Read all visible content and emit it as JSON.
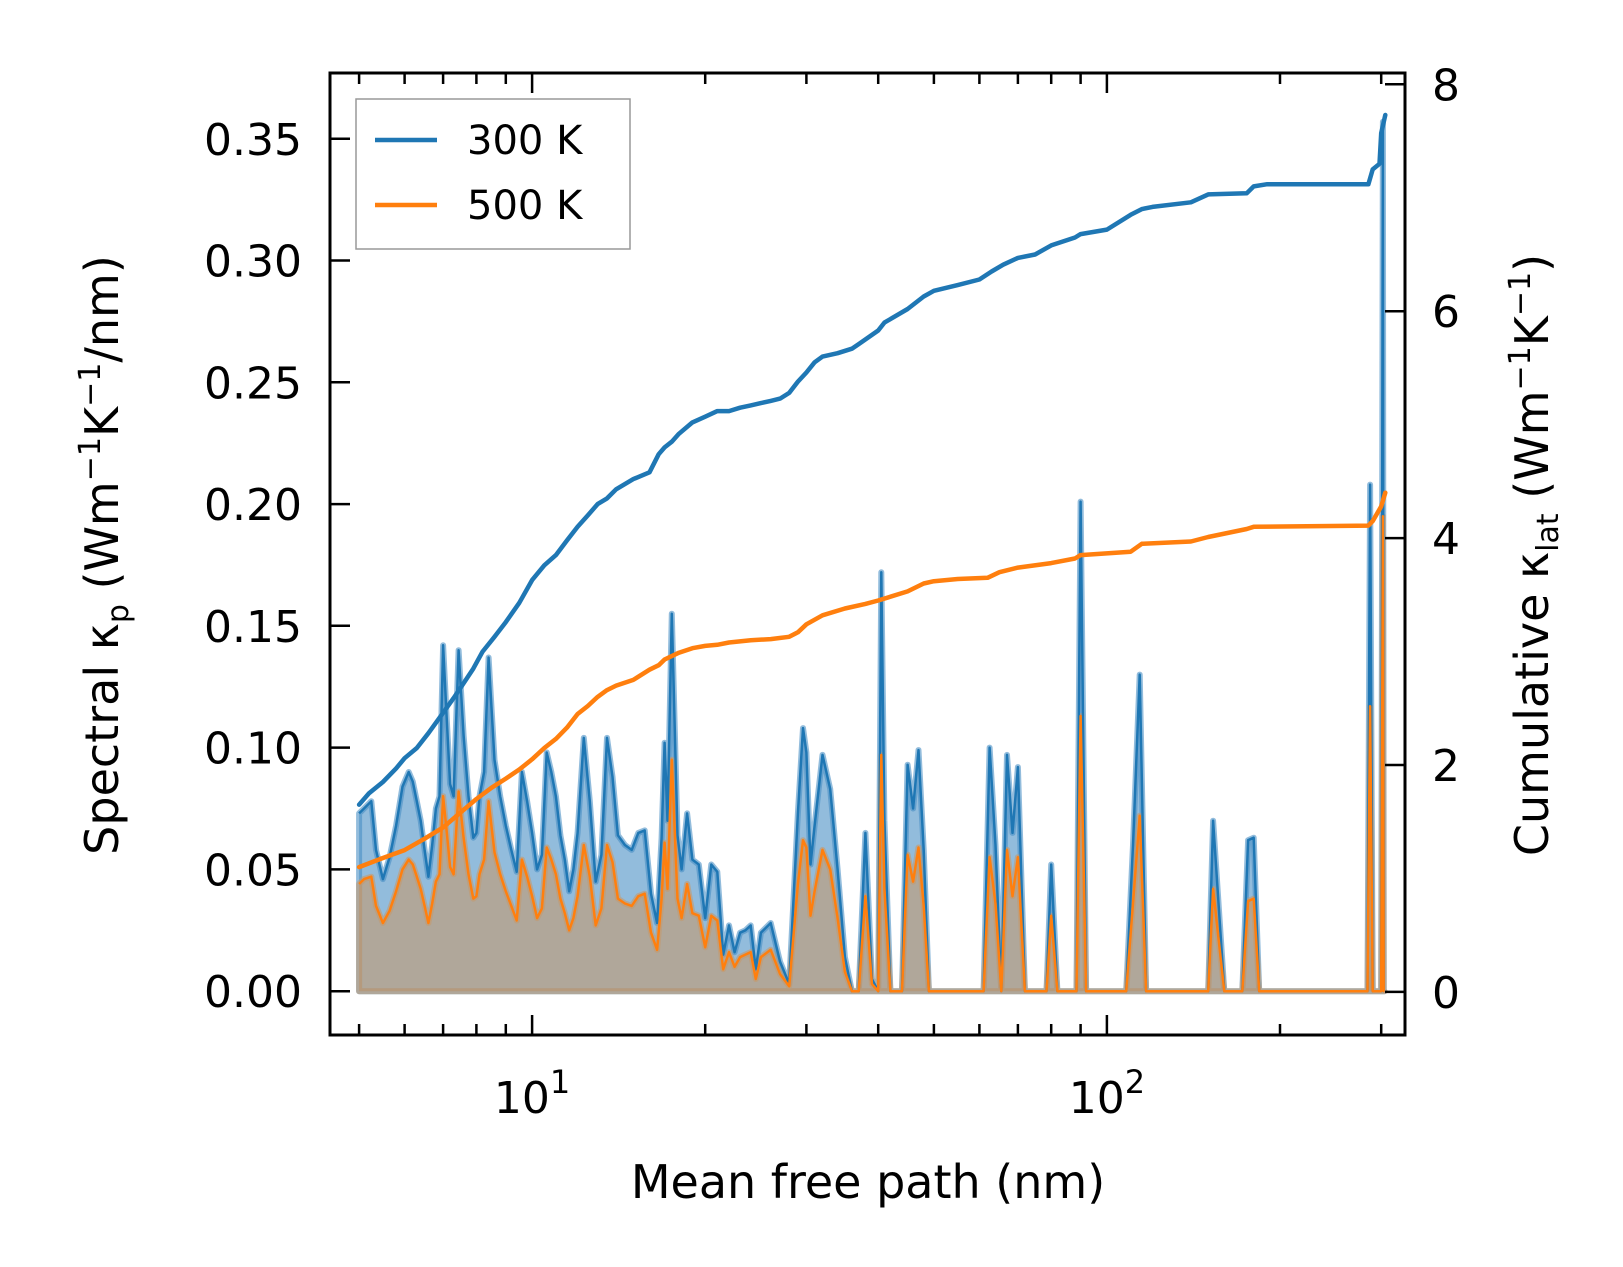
{
  "chart_data": {
    "type": "line",
    "x_scale": "log",
    "xlim": [
      4.45,
      330
    ],
    "xlabel": "Mean free path (nm)",
    "x_major_ticks": [
      {
        "value": 10,
        "base": "10",
        "exp": "1"
      },
      {
        "value": 100,
        "base": "10",
        "exp": "2"
      }
    ],
    "y_left": {
      "label": "Spectral κp (Wm−1K−1/nm)",
      "label_parts": {
        "pre": "Spectral κ",
        "sub": "p",
        "unit_open": " (Wm",
        "sup1": "−1",
        "mid": "K",
        "sup2": "−1",
        "unit_close": "/nm)"
      },
      "lim": [
        -0.018,
        0.377
      ],
      "ticks": [
        0.0,
        0.05,
        0.1,
        0.15,
        0.2,
        0.25,
        0.3,
        0.35
      ],
      "tick_labels": [
        "0.00",
        "0.05",
        "0.10",
        "0.15",
        "0.20",
        "0.25",
        "0.30",
        "0.35"
      ]
    },
    "y_right": {
      "label": "Cumulative κlat (Wm−1K−1)",
      "label_parts": {
        "pre": "Cumulative κ",
        "sub": "lat",
        "unit_open": " (Wm",
        "sup1": "−1",
        "mid": "K",
        "sup2": "−1",
        "unit_close": ")"
      },
      "lim": [
        -0.38,
        8.1
      ],
      "ticks": [
        0,
        2,
        4,
        6,
        8
      ],
      "tick_labels": [
        "0",
        "2",
        "4",
        "6",
        "8"
      ]
    },
    "legend": {
      "position": "top-left",
      "entries": [
        "300 K",
        "500 K"
      ]
    },
    "series": [
      {
        "name": "300 K",
        "color": "#1f77b4",
        "fill_color": "#1f77b4",
        "axis": "right",
        "kind": "cumulative",
        "x": [
          5.0,
          5.2,
          5.5,
          5.8,
          6.0,
          6.3,
          6.6,
          7.0,
          7.3,
          7.6,
          7.9,
          8.2,
          8.6,
          9.0,
          9.5,
          10.0,
          10.5,
          11.0,
          11.5,
          12.0,
          12.5,
          13.0,
          13.5,
          14.0,
          15.0,
          16.0,
          16.6,
          17.0,
          17.5,
          18.0,
          19.0,
          20.0,
          21.0,
          22.0,
          23.0,
          24.0,
          25.0,
          26.0,
          27.0,
          28.0,
          29.0,
          30.0,
          31.0,
          32.0,
          34.0,
          36.0,
          37.0,
          40.0,
          41.0,
          45.0,
          48.0,
          50.0,
          55.0,
          60.0,
          63.0,
          66.0,
          70.0,
          75.0,
          80.0,
          88.0,
          90.0,
          100.0,
          110.0,
          115.0,
          120.0,
          140.0,
          150.0,
          175.0,
          180.0,
          190.0,
          200.0,
          250.0,
          285.0,
          290.0,
          298.0,
          300.0,
          305.0
        ],
        "y": [
          1.65,
          1.75,
          1.85,
          1.97,
          2.06,
          2.15,
          2.28,
          2.46,
          2.59,
          2.72,
          2.85,
          3.0,
          3.13,
          3.26,
          3.43,
          3.63,
          3.76,
          3.85,
          3.98,
          4.1,
          4.2,
          4.3,
          4.35,
          4.43,
          4.52,
          4.58,
          4.74,
          4.8,
          4.85,
          4.92,
          5.02,
          5.07,
          5.12,
          5.12,
          5.15,
          5.17,
          5.19,
          5.21,
          5.23,
          5.28,
          5.38,
          5.46,
          5.55,
          5.6,
          5.63,
          5.67,
          5.71,
          5.83,
          5.9,
          6.02,
          6.13,
          6.18,
          6.23,
          6.28,
          6.35,
          6.41,
          6.47,
          6.5,
          6.58,
          6.65,
          6.68,
          6.72,
          6.85,
          6.9,
          6.92,
          6.96,
          7.03,
          7.04,
          7.1,
          7.12,
          7.12,
          7.12,
          7.12,
          7.25,
          7.3,
          7.57,
          7.73
        ]
      },
      {
        "name": "500 K",
        "color": "#ff7f0e",
        "fill_color": "#ff7f0e",
        "axis": "right",
        "kind": "cumulative",
        "x": [
          5.0,
          5.5,
          6.0,
          6.5,
          7.0,
          7.5,
          8.0,
          8.5,
          9.0,
          9.5,
          10.0,
          10.5,
          11.0,
          11.5,
          12.0,
          12.5,
          13.0,
          13.5,
          14.0,
          15.0,
          16.0,
          16.6,
          17.0,
          18.0,
          19.0,
          20.0,
          21.0,
          22.0,
          24.0,
          26.0,
          28.0,
          29.0,
          30.0,
          32.0,
          35.0,
          38.0,
          40.0,
          45.0,
          48.0,
          50.0,
          55.0,
          62.0,
          65.0,
          70.0,
          80.0,
          88.0,
          90.0,
          110.0,
          115.0,
          140.0,
          150.0,
          175.0,
          180.0,
          285.0,
          290.0,
          300.0,
          305.0
        ],
        "y": [
          1.1,
          1.18,
          1.25,
          1.35,
          1.45,
          1.58,
          1.7,
          1.8,
          1.88,
          1.96,
          2.05,
          2.15,
          2.23,
          2.33,
          2.45,
          2.52,
          2.6,
          2.66,
          2.7,
          2.75,
          2.84,
          2.88,
          2.93,
          2.99,
          3.03,
          3.05,
          3.06,
          3.08,
          3.1,
          3.11,
          3.13,
          3.17,
          3.24,
          3.32,
          3.38,
          3.42,
          3.45,
          3.53,
          3.6,
          3.62,
          3.64,
          3.65,
          3.7,
          3.74,
          3.78,
          3.82,
          3.85,
          3.88,
          3.95,
          3.97,
          4.01,
          4.08,
          4.1,
          4.11,
          4.15,
          4.28,
          4.4
        ]
      },
      {
        "name": "300 K spectral",
        "color": "#1f77b4",
        "fill_color": "#4a8fc4",
        "axis": "left",
        "kind": "spectral",
        "x": [
          5.0,
          5.1,
          5.25,
          5.35,
          5.5,
          5.65,
          5.8,
          5.95,
          6.1,
          6.2,
          6.3,
          6.4,
          6.5,
          6.6,
          6.7,
          6.8,
          6.9,
          7.0,
          7.1,
          7.2,
          7.3,
          7.45,
          7.6,
          7.75,
          7.9,
          8.0,
          8.1,
          8.25,
          8.4,
          8.6,
          8.8,
          9.0,
          9.2,
          9.4,
          9.6,
          9.8,
          10.0,
          10.2,
          10.4,
          10.6,
          10.8,
          11.0,
          11.2,
          11.4,
          11.6,
          11.8,
          12.0,
          12.3,
          12.6,
          12.9,
          13.2,
          13.5,
          13.8,
          14.1,
          14.5,
          14.9,
          15.3,
          15.7,
          16.1,
          16.5,
          16.8,
          17.0,
          17.2,
          17.5,
          17.9,
          18.2,
          18.6,
          19.0,
          19.5,
          20.0,
          20.5,
          21.0,
          21.5,
          22.0,
          22.5,
          23.0,
          23.5,
          24.0,
          24.5,
          25.0,
          26.0,
          27.0,
          28.0,
          29.0,
          29.6,
          30.0,
          30.5,
          31.0,
          32.0,
          33.0,
          34.0,
          35.0,
          36.0,
          37.0,
          38.0,
          39.0,
          40.0,
          40.5,
          41.0,
          42.0,
          43.0,
          44.0,
          45.0,
          46.0,
          47.0,
          48.0,
          49.0,
          50.0,
          52.0,
          55.0,
          58.0,
          60.0,
          61.0,
          62.5,
          64.0,
          65.5,
          67.0,
          68.5,
          70.0,
          72.0,
          75.0,
          77.0,
          78.5,
          80.0,
          82.0,
          85.0,
          87.0,
          88.5,
          90.0,
          92.0,
          95.0,
          100.0,
          105.0,
          108.0,
          111.0,
          114.0,
          117.0,
          120.0,
          130.0,
          140.0,
          147.0,
          150.0,
          153.0,
          160.0,
          168.0,
          172.0,
          176.0,
          180.0,
          184.0,
          190.0,
          200.0,
          250.0,
          280.0,
          284.0,
          287.0,
          290.0,
          294.0,
          297.0,
          300.0,
          302.0,
          303.0,
          304.0
        ],
        "y": [
          0.073,
          0.075,
          0.078,
          0.058,
          0.046,
          0.055,
          0.068,
          0.084,
          0.09,
          0.086,
          0.078,
          0.07,
          0.058,
          0.047,
          0.06,
          0.075,
          0.08,
          0.142,
          0.113,
          0.085,
          0.08,
          0.14,
          0.105,
          0.08,
          0.063,
          0.065,
          0.08,
          0.09,
          0.137,
          0.095,
          0.08,
          0.068,
          0.058,
          0.049,
          0.09,
          0.078,
          0.065,
          0.05,
          0.056,
          0.098,
          0.09,
          0.08,
          0.064,
          0.054,
          0.041,
          0.05,
          0.065,
          0.104,
          0.078,
          0.045,
          0.056,
          0.104,
          0.088,
          0.064,
          0.06,
          0.058,
          0.065,
          0.066,
          0.04,
          0.028,
          0.063,
          0.102,
          0.07,
          0.155,
          0.064,
          0.05,
          0.073,
          0.054,
          0.052,
          0.03,
          0.052,
          0.049,
          0.015,
          0.027,
          0.016,
          0.024,
          0.025,
          0.027,
          0.009,
          0.024,
          0.028,
          0.012,
          0.003,
          0.073,
          0.108,
          0.098,
          0.052,
          0.068,
          0.097,
          0.083,
          0.05,
          0.014,
          0.0,
          0.0,
          0.065,
          0.005,
          0.0,
          0.172,
          0.07,
          0.0,
          0.0,
          0.0,
          0.093,
          0.075,
          0.099,
          0.058,
          0.0,
          0.0,
          0.0,
          0.0,
          0.0,
          0.0,
          0.0,
          0.1,
          0.06,
          0.0,
          0.097,
          0.065,
          0.092,
          0.0,
          0.0,
          0.0,
          0.0,
          0.052,
          0.0,
          0.0,
          0.0,
          0.0,
          0.201,
          0.0,
          0.0,
          0.0,
          0.0,
          0.0,
          0.06,
          0.13,
          0.0,
          0.0,
          0.0,
          0.0,
          0.0,
          0.0,
          0.07,
          0.0,
          0.0,
          0.0,
          0.062,
          0.063,
          0.0,
          0.0,
          0.0,
          0.0,
          0.0,
          0.0,
          0.208,
          0.0,
          0.0,
          0.0,
          0.0,
          0.357,
          0.0,
          0.0
        ]
      },
      {
        "name": "500 K spectral",
        "color": "#ff7f0e",
        "fill_color": "#c49a6e",
        "axis": "left",
        "kind": "spectral",
        "x": [
          5.0,
          5.1,
          5.25,
          5.35,
          5.5,
          5.65,
          5.8,
          5.95,
          6.1,
          6.2,
          6.3,
          6.4,
          6.5,
          6.6,
          6.7,
          6.8,
          6.9,
          7.0,
          7.1,
          7.2,
          7.3,
          7.45,
          7.6,
          7.75,
          7.9,
          8.0,
          8.1,
          8.25,
          8.4,
          8.6,
          8.8,
          9.0,
          9.2,
          9.4,
          9.6,
          9.8,
          10.0,
          10.2,
          10.4,
          10.6,
          10.8,
          11.0,
          11.2,
          11.4,
          11.6,
          11.8,
          12.0,
          12.3,
          12.6,
          12.9,
          13.2,
          13.5,
          13.8,
          14.1,
          14.5,
          14.9,
          15.3,
          15.7,
          16.1,
          16.5,
          16.8,
          17.0,
          17.2,
          17.5,
          17.9,
          18.2,
          18.6,
          19.0,
          19.5,
          20.0,
          20.5,
          21.0,
          21.5,
          22.0,
          22.5,
          23.0,
          23.5,
          24.0,
          24.5,
          25.0,
          26.0,
          27.0,
          28.0,
          29.0,
          29.6,
          30.0,
          30.5,
          31.0,
          32.0,
          33.0,
          34.0,
          35.0,
          36.0,
          37.0,
          38.0,
          39.0,
          40.0,
          40.5,
          41.0,
          42.0,
          43.0,
          44.0,
          45.0,
          46.0,
          47.0,
          48.0,
          49.0,
          50.0,
          52.0,
          55.0,
          58.0,
          60.0,
          61.0,
          62.5,
          64.0,
          65.5,
          67.0,
          68.5,
          70.0,
          72.0,
          75.0,
          77.0,
          78.5,
          80.0,
          82.0,
          85.0,
          87.0,
          88.5,
          90.0,
          92.0,
          95.0,
          100.0,
          105.0,
          108.0,
          111.0,
          114.0,
          117.0,
          120.0,
          130.0,
          140.0,
          147.0,
          150.0,
          153.0,
          160.0,
          168.0,
          172.0,
          176.0,
          180.0,
          184.0,
          190.0,
          200.0,
          250.0,
          280.0,
          284.0,
          287.0,
          290.0,
          294.0,
          297.0,
          300.0,
          302.0,
          303.0,
          304.0
        ],
        "y": [
          0.044,
          0.046,
          0.047,
          0.035,
          0.028,
          0.033,
          0.041,
          0.05,
          0.054,
          0.052,
          0.047,
          0.042,
          0.035,
          0.028,
          0.036,
          0.045,
          0.048,
          0.08,
          0.066,
          0.051,
          0.048,
          0.082,
          0.063,
          0.048,
          0.038,
          0.039,
          0.048,
          0.054,
          0.078,
          0.057,
          0.048,
          0.041,
          0.035,
          0.029,
          0.054,
          0.047,
          0.039,
          0.03,
          0.034,
          0.059,
          0.054,
          0.048,
          0.038,
          0.032,
          0.025,
          0.03,
          0.039,
          0.06,
          0.047,
          0.027,
          0.034,
          0.06,
          0.053,
          0.038,
          0.036,
          0.035,
          0.039,
          0.04,
          0.024,
          0.017,
          0.038,
          0.061,
          0.042,
          0.095,
          0.038,
          0.03,
          0.044,
          0.032,
          0.031,
          0.018,
          0.031,
          0.029,
          0.009,
          0.016,
          0.01,
          0.014,
          0.015,
          0.016,
          0.005,
          0.014,
          0.017,
          0.007,
          0.002,
          0.044,
          0.062,
          0.059,
          0.031,
          0.041,
          0.058,
          0.05,
          0.03,
          0.008,
          0.0,
          0.0,
          0.039,
          0.003,
          0.0,
          0.097,
          0.042,
          0.0,
          0.0,
          0.0,
          0.056,
          0.045,
          0.059,
          0.035,
          0.0,
          0.0,
          0.0,
          0.0,
          0.0,
          0.0,
          0.0,
          0.055,
          0.036,
          0.0,
          0.058,
          0.039,
          0.055,
          0.0,
          0.0,
          0.0,
          0.0,
          0.031,
          0.0,
          0.0,
          0.0,
          0.0,
          0.113,
          0.0,
          0.0,
          0.0,
          0.0,
          0.0,
          0.036,
          0.072,
          0.0,
          0.0,
          0.0,
          0.0,
          0.0,
          0.0,
          0.042,
          0.0,
          0.0,
          0.0,
          0.037,
          0.038,
          0.0,
          0.0,
          0.0,
          0.0,
          0.0,
          0.0,
          0.117,
          0.0,
          0.0,
          0.0,
          0.0,
          0.195,
          0.0,
          0.0
        ]
      }
    ]
  }
}
